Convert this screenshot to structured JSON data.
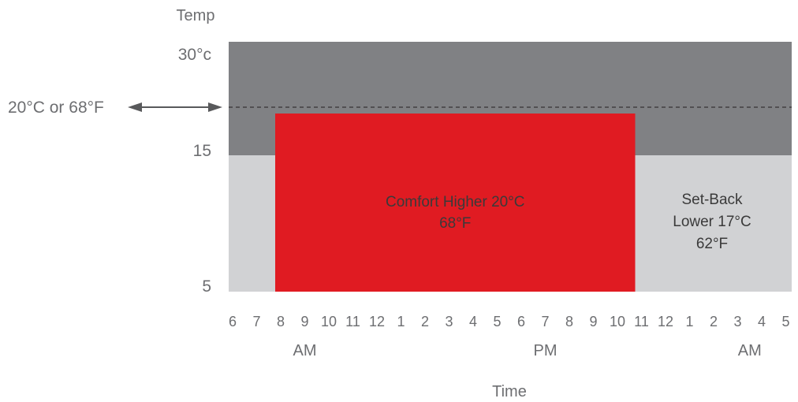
{
  "chart_data": {
    "type": "area",
    "title": "",
    "ylabel": "Temp",
    "xlabel": "Time",
    "ylim": [
      5,
      30
    ],
    "y_ticks": [
      {
        "value": 30,
        "label": "30°c"
      },
      {
        "value": 15,
        "label": "15"
      },
      {
        "value": 5,
        "label": "5"
      }
    ],
    "x_ticks": [
      "6",
      "7",
      "8",
      "9",
      "10",
      "11",
      "12",
      "1",
      "2",
      "3",
      "4",
      "5",
      "6",
      "7",
      "8",
      "9",
      "10",
      "11",
      "12",
      "1",
      "2",
      "3",
      "4",
      "5"
    ],
    "period_labels": [
      {
        "label": "AM",
        "center_tick": 3
      },
      {
        "label": "PM",
        "center_tick": 13
      },
      {
        "label": "AM",
        "center_tick": 21.5
      }
    ],
    "bands": [
      {
        "name": "upper",
        "from": 15,
        "to": 30,
        "color": "#808184"
      },
      {
        "name": "lower",
        "from": 5,
        "to": 15,
        "color": "#d1d2d4"
      }
    ],
    "reference_line": {
      "value": 20,
      "label": "20°C or  68°F"
    },
    "series": [
      {
        "start_tick": 2,
        "end_tick": 17,
        "value": 20,
        "color": "#e01b22",
        "text": [
          "Comfort Higher 20°C",
          "68°F"
        ]
      }
    ],
    "annotations": [
      {
        "text": [
          "Set-Back",
          "Lower 17°C",
          "62°F"
        ]
      }
    ],
    "colors": {
      "text": "#6d6e71",
      "arrow": "#58595b",
      "reference_line": "#231f20"
    }
  }
}
